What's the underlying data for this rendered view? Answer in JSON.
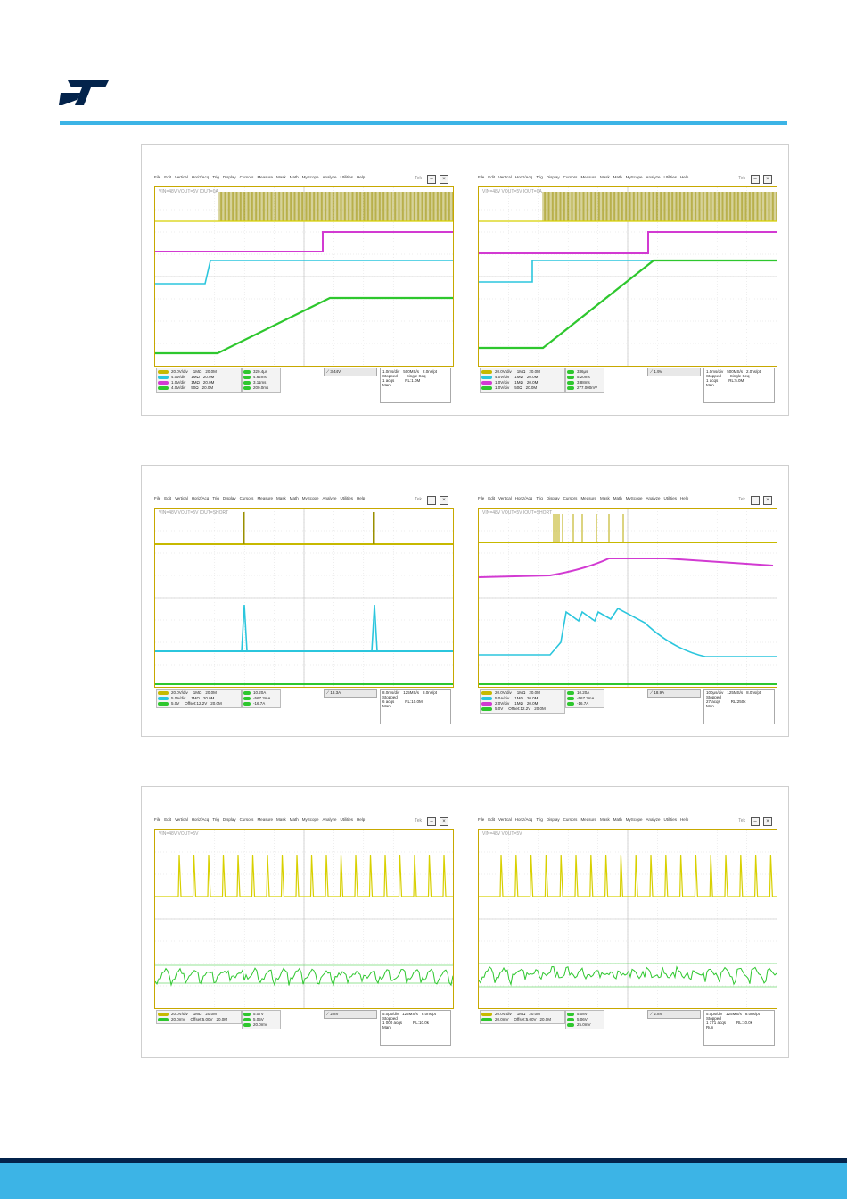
{
  "brand": {
    "logo_text": "ST",
    "colors": {
      "primary": "#03234b",
      "accent": "#3cb4e6"
    }
  },
  "menu": [
    "File",
    "Edit",
    "Vertical",
    "Horiz/Acq",
    "Trig",
    "Display",
    "Cursors",
    "Measure",
    "Mask",
    "Math",
    "MyScope",
    "Analyze",
    "Utilities",
    "Help"
  ],
  "tek_label": "Tek",
  "scopes": [
    {
      "id": "s1",
      "title": "VIN=48V  VOUT=5V  IOUT=0A",
      "channels": [
        {
          "scale": "20.0V/div",
          "imp": "1MΩ",
          "bw": "20.0M",
          "color": "#c7b900"
        },
        {
          "scale": "4.0V/div",
          "imp": "1MΩ",
          "bw": "20.0M",
          "color": "#2bc6dd"
        },
        {
          "scale": "1.0V/div",
          "imp": "1MΩ",
          "bw": "20.0M",
          "color": "#d23ad2"
        },
        {
          "scale": "4.0V/div",
          "imp": "50Ω",
          "bw": "20.0M",
          "color": "#2ec72e"
        }
      ],
      "measurements": [
        "320.4μs",
        "4.62ms",
        "3.11ms",
        "200.0ms"
      ],
      "trigger": "3.44V",
      "acq": {
        "timebase": "1.0ms/div",
        "rate": "500MS/s",
        "res": "2.0ns/pt",
        "state": "Stopped",
        "mode": "Single Seq",
        "acqs": "1 acqs",
        "rl": "RL:1.0M",
        "auto": "Man"
      }
    },
    {
      "id": "s2",
      "title": "VIN=48V  VOUT=5V  IOUT=0A",
      "channels": [
        {
          "scale": "20.0V/div",
          "imp": "1MΩ",
          "bw": "20.0M",
          "color": "#c7b900"
        },
        {
          "scale": "4.0V/div",
          "imp": "1MΩ",
          "bw": "20.0M",
          "color": "#2bc6dd"
        },
        {
          "scale": "1.0V/div",
          "imp": "1MΩ",
          "bw": "20.0M",
          "color": "#d23ad2"
        },
        {
          "scale": "1.0V/div",
          "imp": "50Ω",
          "bw": "20.0M",
          "color": "#2ec72e"
        }
      ],
      "measurements": [
        "336μs",
        "5.20ms",
        "3.88ms",
        "277.000mV"
      ],
      "trigger": "1.9V",
      "acq": {
        "timebase": "1.0ms/div",
        "rate": "500MS/s",
        "res": "2.0ns/pt",
        "state": "Stopped",
        "mode": "Single Seq",
        "acqs": "1 acqs",
        "rl": "RL:5.0M",
        "auto": "Man"
      }
    },
    {
      "id": "s3",
      "title": "VIN=48V  VOUT=5V  IOUT=SHORT",
      "channels": [
        {
          "scale": "20.0V/div",
          "imp": "1MΩ",
          "bw": "20.0M",
          "color": "#c7b900"
        },
        {
          "scale": "5.0A/div",
          "imp": "1MΩ",
          "bw": "20.0M",
          "color": "#2bc6dd"
        },
        {
          "scale": "5.0V",
          "imp": "Offset:12.2V",
          "bw": "20.0M",
          "color": "#2ec72e"
        }
      ],
      "measurements": [
        "10.20A",
        "-567.3mA",
        "-16.7A"
      ],
      "trigger": "18.3A",
      "acq": {
        "timebase": "8.0ms/div",
        "rate": "125MS/s",
        "res": "8.0ns/pt",
        "state": "Stopped",
        "mode": "",
        "acqs": "6 acqs",
        "rl": "RL:10.0M",
        "auto": "Man"
      }
    },
    {
      "id": "s4",
      "title": "VIN=48V  VOUT=5V  IOUT=SHORT",
      "channels": [
        {
          "scale": "20.0V/div",
          "imp": "1MΩ",
          "bw": "20.0M",
          "color": "#c7b900"
        },
        {
          "scale": "5.0A/div",
          "imp": "1MΩ",
          "bw": "20.0M",
          "color": "#2bc6dd"
        },
        {
          "scale": "2.0V/div",
          "imp": "1MΩ",
          "bw": "20.0M",
          "color": "#d23ad2"
        },
        {
          "scale": "5.0V",
          "imp": "Offset:12.2V",
          "bw": "20.0M",
          "color": "#2ec72e"
        }
      ],
      "measurements": [
        "10.20A",
        "-567.3mA",
        "-16.7A"
      ],
      "trigger": "18.9A",
      "acq": {
        "timebase": "100μs/div",
        "rate": "125MS/s",
        "res": "8.0ns/pt",
        "state": "Stopped",
        "mode": "",
        "acqs": "27 acqs",
        "rl": "RL:250k",
        "auto": "Man"
      }
    },
    {
      "id": "s5",
      "title": "VIN=48V  VOUT=5V",
      "channels": [
        {
          "scale": "20.0V/div",
          "imp": "1MΩ",
          "bw": "20.0M",
          "color": "#c7b900"
        },
        {
          "scale": "20.0mV",
          "imp": "Offset:5.00V",
          "bw": "20.0M",
          "color": "#2ec72e"
        }
      ],
      "measurements": [
        "5.07V",
        "5.05V",
        "20.0mV"
      ],
      "trigger": "2.8V",
      "acq": {
        "timebase": "5.0μs/div",
        "rate": "125MS/s",
        "res": "8.0ns/pt",
        "state": "Stopped",
        "mode": "",
        "acqs": "1 000 acqs",
        "rl": "RL:10.0k",
        "auto": "Man"
      }
    },
    {
      "id": "s6",
      "title": "VIN=48V  VOUT=5V",
      "channels": [
        {
          "scale": "20.0V/div",
          "imp": "1MΩ",
          "bw": "20.0M",
          "color": "#c7b900"
        },
        {
          "scale": "20.0mV",
          "imp": "Offset:5.00V",
          "bw": "20.0M",
          "color": "#2ec72e"
        }
      ],
      "measurements": [
        "5.08V",
        "5.06V",
        "25.0mV"
      ],
      "trigger": "2.8V",
      "acq": {
        "timebase": "5.0μs/div",
        "rate": "125MS/s",
        "res": "8.0ns/pt",
        "state": "Stopped",
        "mode": "",
        "acqs": "1 171 acqs",
        "rl": "RL:10.0k",
        "auto": "Run"
      }
    }
  ]
}
